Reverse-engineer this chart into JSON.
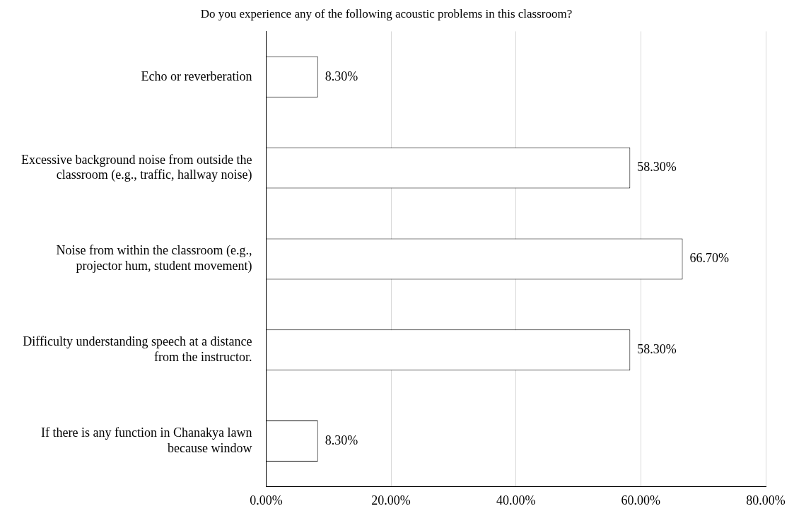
{
  "chart_data": {
    "type": "bar",
    "orientation": "horizontal",
    "title": "Do you experience any of the following acoustic problems in this classroom?",
    "categories": [
      "Echo or reverberation",
      "Excessive background noise from outside the classroom (e.g., traffic, hallway noise)",
      "Noise from within the classroom (e.g., projector hum, student movement)",
      "Difficulty understanding speech at a distance from the instructor.",
      "If there is any function in Chanakya lawn because window"
    ],
    "values": [
      8.3,
      58.3,
      66.7,
      58.3,
      8.3
    ],
    "value_labels": [
      "8.30%",
      "58.30%",
      "66.70%",
      "58.30%",
      "8.30%"
    ],
    "color": "#ffffff",
    "xlim": [
      0,
      80
    ],
    "xticks": [
      {
        "value": 0,
        "label": "0.00%"
      },
      {
        "value": 20,
        "label": "20.00%"
      },
      {
        "value": 40,
        "label": "40.00%"
      },
      {
        "value": 60,
        "label": "60.00%"
      },
      {
        "value": 80,
        "label": "80.00%"
      }
    ],
    "grid": "x",
    "legend": false
  }
}
